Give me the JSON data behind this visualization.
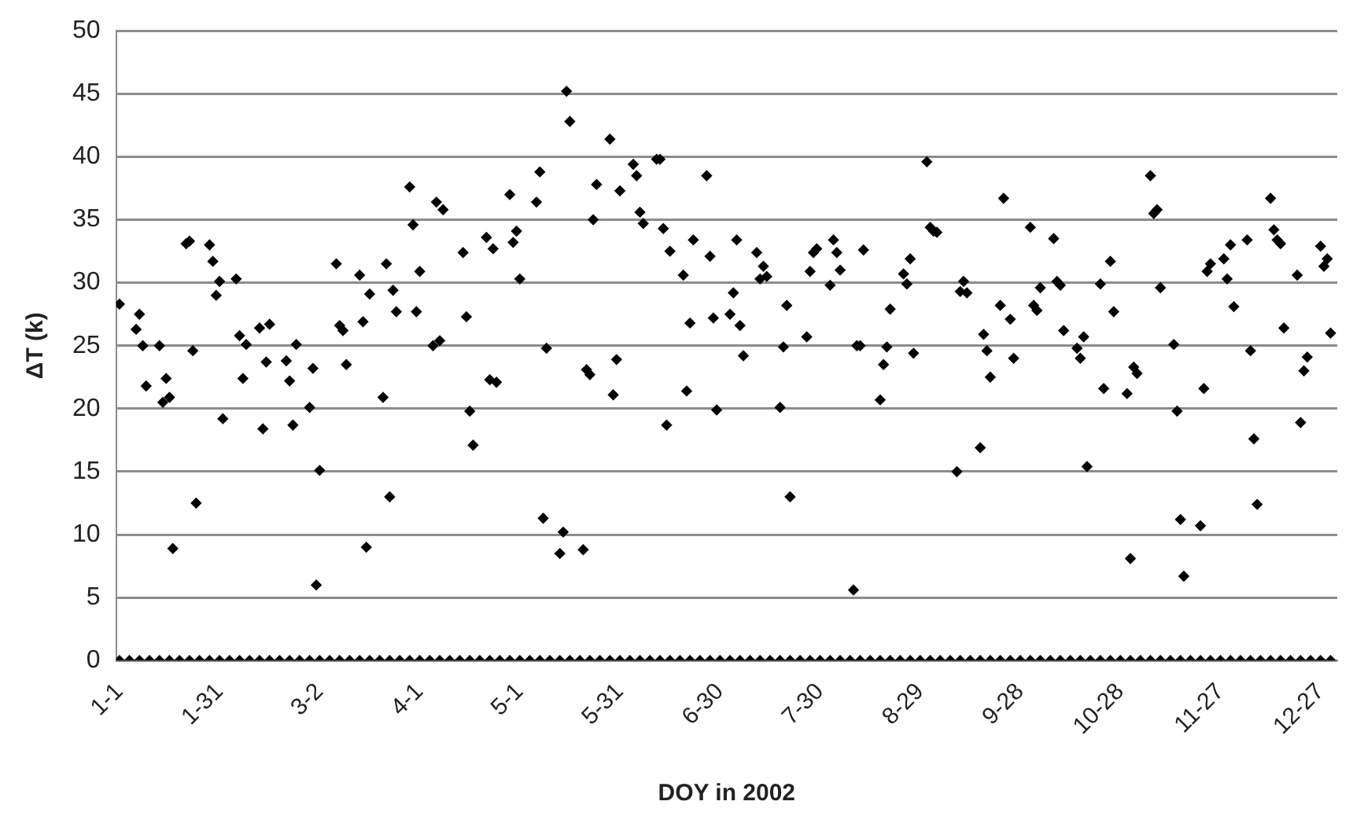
{
  "chart_data": {
    "type": "scatter",
    "xlabel": "DOY in 2002",
    "ylabel": "ΔT (k)",
    "xlim": [
      "2001-12-31",
      "2003-01-01"
    ],
    "xticks": [
      {
        "value": "2002-01-01",
        "label": "1-1"
      },
      {
        "value": "2002-01-31",
        "label": "1-31"
      },
      {
        "value": "2002-03-02",
        "label": "3-2"
      },
      {
        "value": "2002-04-01",
        "label": "4-1"
      },
      {
        "value": "2002-05-01",
        "label": "5-1"
      },
      {
        "value": "2002-05-31",
        "label": "5-31"
      },
      {
        "value": "2002-06-30",
        "label": "6-30"
      },
      {
        "value": "2002-07-30",
        "label": "7-30"
      },
      {
        "value": "2002-08-29",
        "label": "8-29"
      },
      {
        "value": "2002-09-28",
        "label": "9-28"
      },
      {
        "value": "2002-10-28",
        "label": "10-28"
      },
      {
        "value": "2002-11-27",
        "label": "11-27"
      },
      {
        "value": "2002-12-27",
        "label": "12-27"
      }
    ],
    "ylim": [
      0,
      50
    ],
    "yticks": [
      0,
      5,
      10,
      15,
      20,
      25,
      30,
      35,
      40,
      45,
      50
    ],
    "grid": "y",
    "marker": "diamond",
    "legend": false,
    "series": [
      {
        "color": "#000000",
        "x": [
          "2002-01-01",
          "2002-01-06",
          "2002-01-07",
          "2002-01-08",
          "2002-01-09",
          "2002-01-13",
          "2002-01-14",
          "2002-01-15",
          "2002-01-16",
          "2002-01-17",
          "2002-01-21",
          "2002-01-22",
          "2002-01-23",
          "2002-01-24",
          "2002-01-28",
          "2002-01-29",
          "2002-01-30",
          "2002-01-31",
          "2002-02-01",
          "2002-02-05",
          "2002-02-06",
          "2002-02-07",
          "2002-02-08",
          "2002-02-12",
          "2002-02-13",
          "2002-02-14",
          "2002-02-15",
          "2002-02-20",
          "2002-02-21",
          "2002-02-22",
          "2002-02-23",
          "2002-02-27",
          "2002-02-28",
          "2002-03-01",
          "2002-03-02",
          "2002-03-07",
          "2002-03-08",
          "2002-03-09",
          "2002-03-10",
          "2002-03-14",
          "2002-03-15",
          "2002-03-16",
          "2002-03-17",
          "2002-03-21",
          "2002-03-22",
          "2002-03-23",
          "2002-03-24",
          "2002-03-25",
          "2002-03-29",
          "2002-03-30",
          "2002-03-31",
          "2002-04-01",
          "2002-04-05",
          "2002-04-06",
          "2002-04-07",
          "2002-04-08",
          "2002-04-14",
          "2002-04-15",
          "2002-04-16",
          "2002-04-17",
          "2002-04-21",
          "2002-04-22",
          "2002-04-23",
          "2002-04-24",
          "2002-04-28",
          "2002-04-29",
          "2002-04-30",
          "2002-05-01",
          "2002-05-06",
          "2002-05-07",
          "2002-05-08",
          "2002-05-09",
          "2002-05-13",
          "2002-05-14",
          "2002-05-15",
          "2002-05-16",
          "2002-05-20",
          "2002-05-21",
          "2002-05-22",
          "2002-05-23",
          "2002-05-24",
          "2002-05-28",
          "2002-05-29",
          "2002-05-30",
          "2002-05-31",
          "2002-06-04",
          "2002-06-05",
          "2002-06-06",
          "2002-06-07",
          "2002-06-11",
          "2002-06-12",
          "2002-06-13",
          "2002-06-14",
          "2002-06-15",
          "2002-06-19",
          "2002-06-20",
          "2002-06-21",
          "2002-06-22",
          "2002-06-26",
          "2002-06-27",
          "2002-06-28",
          "2002-06-29",
          "2002-07-03",
          "2002-07-04",
          "2002-07-05",
          "2002-07-06",
          "2002-07-07",
          "2002-07-11",
          "2002-07-12",
          "2002-07-13",
          "2002-07-14",
          "2002-07-18",
          "2002-07-19",
          "2002-07-20",
          "2002-07-21",
          "2002-07-26",
          "2002-07-27",
          "2002-07-28",
          "2002-07-29",
          "2002-08-02",
          "2002-08-03",
          "2002-08-04",
          "2002-08-05",
          "2002-08-09",
          "2002-08-10",
          "2002-08-11",
          "2002-08-12",
          "2002-08-17",
          "2002-08-18",
          "2002-08-19",
          "2002-08-20",
          "2002-08-24",
          "2002-08-25",
          "2002-08-26",
          "2002-08-27",
          "2002-08-31",
          "2002-09-01",
          "2002-09-02",
          "2002-09-03",
          "2002-09-09",
          "2002-09-10",
          "2002-09-11",
          "2002-09-12",
          "2002-09-16",
          "2002-09-17",
          "2002-09-18",
          "2002-09-19",
          "2002-09-22",
          "2002-09-23",
          "2002-09-25",
          "2002-09-26",
          "2002-10-01",
          "2002-10-02",
          "2002-10-03",
          "2002-10-04",
          "2002-10-08",
          "2002-10-09",
          "2002-10-10",
          "2002-10-11",
          "2002-10-15",
          "2002-10-16",
          "2002-10-17",
          "2002-10-18",
          "2002-10-22",
          "2002-10-23",
          "2002-10-25",
          "2002-10-26",
          "2002-10-30",
          "2002-10-31",
          "2002-11-01",
          "2002-11-02",
          "2002-11-06",
          "2002-11-07",
          "2002-11-08",
          "2002-11-09",
          "2002-11-13",
          "2002-11-14",
          "2002-11-15",
          "2002-11-16",
          "2002-11-21",
          "2002-11-22",
          "2002-11-23",
          "2002-11-24",
          "2002-11-28",
          "2002-11-29",
          "2002-11-30",
          "2002-12-01",
          "2002-12-05",
          "2002-12-06",
          "2002-12-07",
          "2002-12-08",
          "2002-12-12",
          "2002-12-13",
          "2002-12-14",
          "2002-12-15",
          "2002-12-16",
          "2002-12-20",
          "2002-12-21",
          "2002-12-22",
          "2002-12-23",
          "2002-12-27",
          "2002-12-28",
          "2002-12-29",
          "2002-12-30"
        ],
        "values": [
          28.3,
          26.3,
          27.5,
          25.0,
          21.8,
          25.0,
          20.5,
          22.4,
          20.9,
          8.9,
          33.1,
          33.3,
          24.6,
          12.5,
          33.0,
          31.7,
          29.0,
          30.1,
          19.2,
          30.3,
          25.8,
          22.4,
          25.1,
          26.4,
          18.4,
          23.7,
          26.7,
          23.8,
          22.2,
          18.7,
          25.1,
          20.1,
          23.2,
          6.0,
          15.1,
          31.5,
          26.6,
          26.2,
          23.5,
          30.6,
          26.9,
          9.0,
          29.1,
          20.9,
          31.5,
          13.0,
          29.4,
          27.7,
          37.6,
          34.6,
          27.7,
          30.9,
          25.0,
          36.4,
          25.4,
          35.8,
          32.4,
          27.3,
          19.8,
          17.1,
          33.6,
          22.3,
          32.7,
          22.1,
          37.0,
          33.2,
          34.1,
          30.3,
          36.4,
          38.8,
          11.3,
          24.8,
          8.5,
          10.2,
          45.2,
          42.8,
          8.8,
          23.1,
          22.7,
          35.0,
          37.8,
          41.4,
          21.1,
          23.9,
          37.3,
          39.4,
          38.5,
          35.6,
          34.7,
          39.8,
          39.8,
          34.3,
          18.7,
          32.5,
          30.6,
          21.4,
          26.8,
          33.4,
          38.5,
          32.1,
          27.2,
          19.9,
          27.5,
          29.2,
          33.4,
          26.6,
          24.2,
          32.4,
          30.3,
          31.3,
          30.5,
          20.1,
          24.9,
          28.2,
          13.0,
          25.7,
          30.9,
          32.4,
          32.7,
          29.8,
          33.4,
          32.4,
          31.0,
          5.6,
          25.0,
          25.0,
          32.6,
          20.7,
          23.5,
          24.9,
          27.9,
          30.7,
          29.9,
          31.9,
          24.4,
          39.6,
          34.4,
          34.1,
          34.0,
          15.0,
          29.3,
          30.1,
          29.2,
          16.9,
          25.9,
          24.6,
          22.5,
          28.2,
          36.7,
          27.1,
          24.0,
          34.4,
          28.2,
          27.8,
          29.6,
          33.5,
          30.1,
          29.8,
          26.2,
          24.8,
          24.0,
          25.7,
          15.4,
          29.9,
          21.6,
          31.7,
          27.7,
          21.2,
          8.1,
          23.3,
          22.8,
          38.5,
          35.5,
          35.8,
          29.6,
          25.1,
          19.8,
          11.2,
          6.7,
          10.7,
          21.6,
          30.9,
          31.5,
          31.9,
          30.3,
          33.0,
          28.1,
          33.4,
          24.6,
          17.6,
          12.4,
          36.7,
          34.2,
          33.4,
          33.1,
          26.4,
          30.6,
          18.9,
          23.0,
          24.1,
          32.9,
          31.3,
          31.9,
          26.0
        ]
      },
      {
        "color": "#000000",
        "x": [
          "2002-01-01",
          "2002-01-04",
          "2002-01-07",
          "2002-01-10",
          "2002-01-13",
          "2002-01-16",
          "2002-01-19",
          "2002-01-22",
          "2002-01-25",
          "2002-01-28",
          "2002-01-31",
          "2002-02-03",
          "2002-02-06",
          "2002-02-09",
          "2002-02-12",
          "2002-02-15",
          "2002-02-18",
          "2002-02-21",
          "2002-02-24",
          "2002-02-27",
          "2002-03-02",
          "2002-03-05",
          "2002-03-08",
          "2002-03-11",
          "2002-03-14",
          "2002-03-17",
          "2002-03-20",
          "2002-03-23",
          "2002-03-26",
          "2002-03-29",
          "2002-04-01",
          "2002-04-04",
          "2002-04-07",
          "2002-04-10",
          "2002-04-13",
          "2002-04-16",
          "2002-04-19",
          "2002-04-22",
          "2002-04-25",
          "2002-04-28",
          "2002-05-01",
          "2002-05-04",
          "2002-05-07",
          "2002-05-10",
          "2002-05-13",
          "2002-05-16",
          "2002-05-19",
          "2002-05-22",
          "2002-05-25",
          "2002-05-28",
          "2002-05-31",
          "2002-06-03",
          "2002-06-06",
          "2002-06-09",
          "2002-06-12",
          "2002-06-15",
          "2002-06-18",
          "2002-06-21",
          "2002-06-24",
          "2002-06-27",
          "2002-06-30",
          "2002-07-03",
          "2002-07-06",
          "2002-07-09",
          "2002-07-12",
          "2002-07-15",
          "2002-07-18",
          "2002-07-21",
          "2002-07-24",
          "2002-07-27",
          "2002-07-30",
          "2002-08-02",
          "2002-08-05",
          "2002-08-08",
          "2002-08-11",
          "2002-08-14",
          "2002-08-17",
          "2002-08-20",
          "2002-08-23",
          "2002-08-26",
          "2002-08-29",
          "2002-09-01",
          "2002-09-04",
          "2002-09-07",
          "2002-09-10",
          "2002-09-13",
          "2002-09-16",
          "2002-09-19",
          "2002-09-22",
          "2002-09-25",
          "2002-09-28",
          "2002-10-01",
          "2002-10-04",
          "2002-10-07",
          "2002-10-10",
          "2002-10-13",
          "2002-10-16",
          "2002-10-19",
          "2002-10-22",
          "2002-10-25",
          "2002-10-28",
          "2002-10-31",
          "2002-11-03",
          "2002-11-06",
          "2002-11-09",
          "2002-11-12",
          "2002-11-15",
          "2002-11-18",
          "2002-11-21",
          "2002-11-24",
          "2002-11-27",
          "2002-11-30",
          "2002-12-03",
          "2002-12-06",
          "2002-12-09",
          "2002-12-12",
          "2002-12-15",
          "2002-12-18",
          "2002-12-21",
          "2002-12-24",
          "2002-12-27",
          "2002-12-30"
        ],
        "values": [
          0,
          0,
          0,
          0,
          0,
          0,
          0,
          0,
          0,
          0,
          0,
          0,
          0,
          0,
          0,
          0,
          0,
          0,
          0,
          0,
          0,
          0,
          0,
          0,
          0,
          0,
          0,
          0,
          0,
          0,
          0,
          0,
          0,
          0,
          0,
          0,
          0,
          0,
          0,
          0,
          0,
          0,
          0,
          0,
          0,
          0,
          0,
          0,
          0,
          0,
          0,
          0,
          0,
          0,
          0,
          0,
          0,
          0,
          0,
          0,
          0,
          0,
          0,
          0,
          0,
          0,
          0,
          0,
          0,
          0,
          0,
          0,
          0,
          0,
          0,
          0,
          0,
          0,
          0,
          0,
          0,
          0,
          0,
          0,
          0,
          0,
          0,
          0,
          0,
          0,
          0,
          0,
          0,
          0,
          0,
          0,
          0,
          0,
          0,
          0,
          0,
          0,
          0,
          0,
          0,
          0,
          0,
          0,
          0,
          0,
          0,
          0,
          0,
          0,
          0,
          0,
          0,
          0,
          0,
          0,
          0,
          0
        ]
      }
    ]
  }
}
